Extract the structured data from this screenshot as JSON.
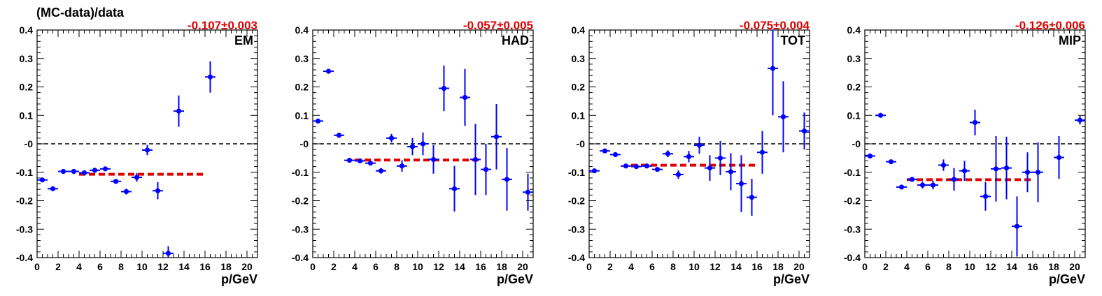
{
  "figure": {
    "ylabel": "(MC-data)/data",
    "xlabel": "p/GeV"
  },
  "chart_data": [
    {
      "type": "scatter",
      "label": "EM",
      "fit_label": "-0.107±0.003",
      "fit_value": -0.107,
      "fit_range": [
        4,
        16
      ],
      "xlabel": "p/GeV",
      "ylabel": "(MC-data)/data",
      "xlim": [
        0,
        21
      ],
      "ylim": [
        -0.4,
        0.4
      ],
      "x_ticks": [
        "0",
        "2",
        "4",
        "6",
        "8",
        "10",
        "12",
        "14",
        "16",
        "18",
        "20"
      ],
      "y_ticks": [
        "-0.4",
        "-0.3",
        "-0.2",
        "-0.1",
        "-0",
        "0.1",
        "0.2",
        "0.3",
        "0.4"
      ],
      "points": [
        {
          "x": 0.5,
          "y": -0.127,
          "err": 0.006
        },
        {
          "x": 1.5,
          "y": -0.158,
          "err": 0.005
        },
        {
          "x": 2.5,
          "y": -0.097,
          "err": 0.004
        },
        {
          "x": 3.5,
          "y": -0.097,
          "err": 0.004
        },
        {
          "x": 4.5,
          "y": -0.102,
          "err": 0.005
        },
        {
          "x": 5.5,
          "y": -0.093,
          "err": 0.006
        },
        {
          "x": 6.5,
          "y": -0.088,
          "err": 0.006
        },
        {
          "x": 7.5,
          "y": -0.132,
          "err": 0.008
        },
        {
          "x": 8.5,
          "y": -0.168,
          "err": 0.01
        },
        {
          "x": 9.5,
          "y": -0.118,
          "err": 0.015
        },
        {
          "x": 10.5,
          "y": -0.022,
          "err": 0.018
        },
        {
          "x": 11.5,
          "y": -0.165,
          "err": 0.03
        },
        {
          "x": 12.5,
          "y": -0.385,
          "err": 0.025
        },
        {
          "x": 13.5,
          "y": 0.115,
          "err": 0.055
        },
        {
          "x": 16.5,
          "y": 0.235,
          "err": 0.055
        }
      ]
    },
    {
      "type": "scatter",
      "label": "HAD",
      "fit_label": "-0.057±0.005",
      "fit_value": -0.057,
      "fit_range": [
        4,
        16
      ],
      "xlabel": "p/GeV",
      "ylabel": "",
      "xlim": [
        0,
        21
      ],
      "ylim": [
        -0.4,
        0.4
      ],
      "x_ticks": [
        "0",
        "2",
        "4",
        "6",
        "8",
        "10",
        "12",
        "14",
        "16",
        "18",
        "20"
      ],
      "y_ticks": [
        "-0.4",
        "-0.3",
        "-0.2",
        "-0.1",
        "-0",
        "0.1",
        "0.2",
        "0.3",
        "0.4"
      ],
      "points": [
        {
          "x": 0.5,
          "y": 0.08,
          "err": 0.006
        },
        {
          "x": 1.5,
          "y": 0.255,
          "err": 0.005
        },
        {
          "x": 2.5,
          "y": 0.03,
          "err": 0.005
        },
        {
          "x": 3.5,
          "y": -0.058,
          "err": 0.005
        },
        {
          "x": 4.5,
          "y": -0.06,
          "err": 0.006
        },
        {
          "x": 5.5,
          "y": -0.068,
          "err": 0.008
        },
        {
          "x": 6.5,
          "y": -0.095,
          "err": 0.01
        },
        {
          "x": 7.5,
          "y": 0.02,
          "err": 0.015
        },
        {
          "x": 8.5,
          "y": -0.078,
          "err": 0.02
        },
        {
          "x": 9.5,
          "y": -0.01,
          "err": 0.03
        },
        {
          "x": 10.5,
          "y": 0.0,
          "err": 0.04
        },
        {
          "x": 11.5,
          "y": -0.055,
          "err": 0.05
        },
        {
          "x": 12.5,
          "y": 0.195,
          "err": 0.08
        },
        {
          "x": 13.5,
          "y": -0.158,
          "err": 0.08
        },
        {
          "x": 14.5,
          "y": 0.163,
          "err": 0.1
        },
        {
          "x": 15.5,
          "y": -0.055,
          "err": 0.125
        },
        {
          "x": 16.5,
          "y": -0.09,
          "err": 0.09
        },
        {
          "x": 17.5,
          "y": 0.025,
          "err": 0.115
        },
        {
          "x": 18.5,
          "y": -0.125,
          "err": 0.11
        },
        {
          "x": 20.5,
          "y": -0.17,
          "err": 0.065
        }
      ]
    },
    {
      "type": "scatter",
      "label": "TOT",
      "fit_label": "-0.075±0.004",
      "fit_value": -0.075,
      "fit_range": [
        4,
        16
      ],
      "xlabel": "p/GeV",
      "ylabel": "",
      "xlim": [
        0,
        21
      ],
      "ylim": [
        -0.4,
        0.4
      ],
      "x_ticks": [
        "0",
        "2",
        "4",
        "6",
        "8",
        "10",
        "12",
        "14",
        "16",
        "18",
        "20"
      ],
      "y_ticks": [
        "-0.4",
        "-0.3",
        "-0.2",
        "-0.1",
        "-0",
        "0.1",
        "0.2",
        "0.3",
        "0.4"
      ],
      "points": [
        {
          "x": 0.5,
          "y": -0.095,
          "err": 0.005
        },
        {
          "x": 1.5,
          "y": -0.025,
          "err": 0.004
        },
        {
          "x": 2.5,
          "y": -0.038,
          "err": 0.004
        },
        {
          "x": 3.5,
          "y": -0.078,
          "err": 0.004
        },
        {
          "x": 4.5,
          "y": -0.08,
          "err": 0.005
        },
        {
          "x": 5.5,
          "y": -0.078,
          "err": 0.006
        },
        {
          "x": 6.5,
          "y": -0.09,
          "err": 0.008
        },
        {
          "x": 7.5,
          "y": -0.035,
          "err": 0.012
        },
        {
          "x": 8.5,
          "y": -0.108,
          "err": 0.015
        },
        {
          "x": 9.5,
          "y": -0.045,
          "err": 0.02
        },
        {
          "x": 10.5,
          "y": -0.005,
          "err": 0.03
        },
        {
          "x": 11.5,
          "y": -0.085,
          "err": 0.045
        },
        {
          "x": 12.5,
          "y": -0.05,
          "err": 0.06
        },
        {
          "x": 13.5,
          "y": -0.098,
          "err": 0.065
        },
        {
          "x": 14.5,
          "y": -0.14,
          "err": 0.1
        },
        {
          "x": 15.5,
          "y": -0.188,
          "err": 0.065
        },
        {
          "x": 16.5,
          "y": -0.03,
          "err": 0.075
        },
        {
          "x": 17.5,
          "y": 0.265,
          "err": 0.165
        },
        {
          "x": 18.5,
          "y": 0.095,
          "err": 0.125
        },
        {
          "x": 20.5,
          "y": 0.045,
          "err": 0.065
        }
      ]
    },
    {
      "type": "scatter",
      "label": "MIP",
      "fit_label": "-0.126±0.006",
      "fit_value": -0.126,
      "fit_range": [
        4,
        16
      ],
      "xlabel": "p/GeV",
      "ylabel": "",
      "xlim": [
        0,
        21
      ],
      "ylim": [
        -0.4,
        0.4
      ],
      "x_ticks": [
        "0",
        "2",
        "4",
        "6",
        "8",
        "10",
        "12",
        "14",
        "16",
        "18",
        "20"
      ],
      "y_ticks": [
        "-0.4",
        "-0.3",
        "-0.2",
        "-0.1",
        "-0",
        "0.1",
        "0.2",
        "0.3",
        "0.4"
      ],
      "points": [
        {
          "x": 0.5,
          "y": -0.043,
          "err": 0.006
        },
        {
          "x": 1.5,
          "y": 0.1,
          "err": 0.005
        },
        {
          "x": 2.5,
          "y": -0.063,
          "err": 0.005
        },
        {
          "x": 3.5,
          "y": -0.152,
          "err": 0.006
        },
        {
          "x": 4.5,
          "y": -0.125,
          "err": 0.008
        },
        {
          "x": 5.5,
          "y": -0.145,
          "err": 0.012
        },
        {
          "x": 6.5,
          "y": -0.145,
          "err": 0.015
        },
        {
          "x": 7.5,
          "y": -0.075,
          "err": 0.02
        },
        {
          "x": 8.5,
          "y": -0.125,
          "err": 0.04
        },
        {
          "x": 9.5,
          "y": -0.095,
          "err": 0.035
        },
        {
          "x": 10.5,
          "y": 0.075,
          "err": 0.045
        },
        {
          "x": 11.5,
          "y": -0.185,
          "err": 0.05
        },
        {
          "x": 12.5,
          "y": -0.088,
          "err": 0.115
        },
        {
          "x": 13.5,
          "y": -0.085,
          "err": 0.11
        },
        {
          "x": 14.5,
          "y": -0.29,
          "err": 0.105
        },
        {
          "x": 15.5,
          "y": -0.1,
          "err": 0.07
        },
        {
          "x": 16.5,
          "y": -0.1,
          "err": 0.105
        },
        {
          "x": 18.5,
          "y": -0.048,
          "err": 0.075
        },
        {
          "x": 20.5,
          "y": 0.083,
          "err": 0.015
        }
      ]
    }
  ]
}
